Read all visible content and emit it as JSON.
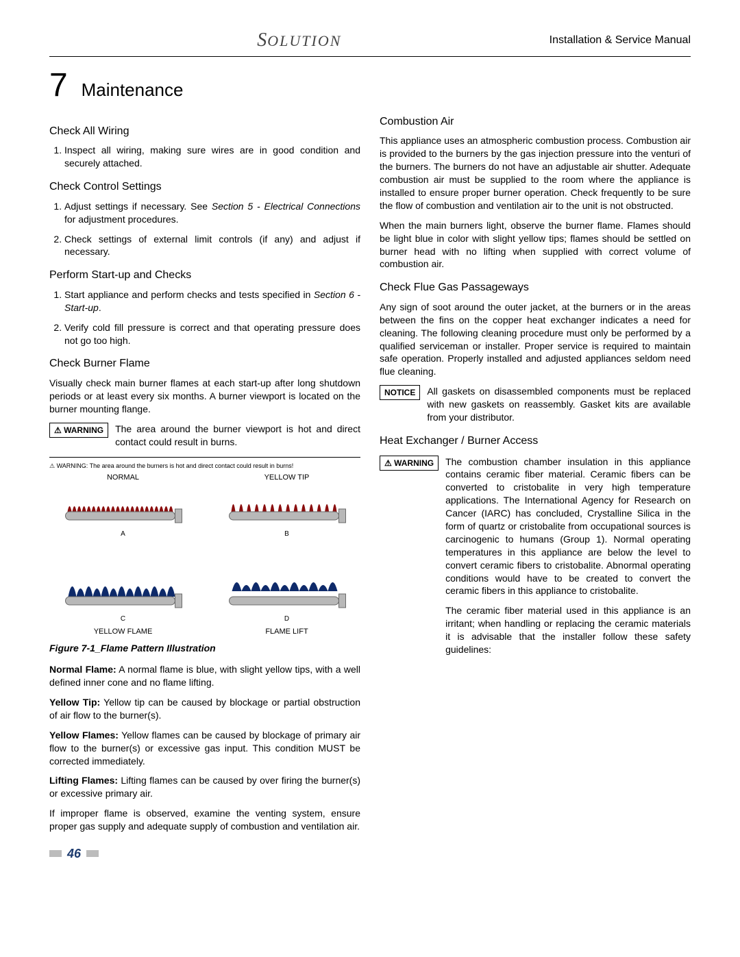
{
  "header": {
    "brand": "Solution",
    "doc_title": "Installation & Service Manual"
  },
  "chapter": {
    "number": "7",
    "title": "Maintenance"
  },
  "left": {
    "sec1_h": "Check All Wiring",
    "sec1_li1": "Inspect all wiring, making sure wires are in good condition and securely attached.",
    "sec2_h": "Check Control Settings",
    "sec2_li1_a": "Adjust settings if necessary.  See ",
    "sec2_li1_ref": "Section 5 - Electrical Connections",
    "sec2_li1_b": " for adjustment procedures.",
    "sec2_li2": "Check settings of external limit controls (if any) and adjust if necessary.",
    "sec3_h": "Perform Start-up and Checks",
    "sec3_li1_a": "Start appliance and perform checks and tests specified in ",
    "sec3_li1_ref": "Section 6 - Start-up",
    "sec3_li1_b": ".",
    "sec3_li2": "Verify cold fill pressure is correct and that operating pressure does not go too high.",
    "sec4_h": "Check Burner Flame",
    "sec4_p1": "Visually check main burner flames at each start-up after long shutdown periods or at least every six months.  A burner viewport is located on the burner mounting flange.",
    "warn1_label": "WARNING",
    "warn1_text": "The area around the burner viewport is hot and direct contact could result in burns.",
    "figure": {
      "fig_warn": "⚠ WARNING:  The area around the burners is hot and direct contact could result in burns!",
      "a_top": "NORMAL",
      "b_top": "YELLOW TIP",
      "a_letter": "A",
      "b_letter": "B",
      "c_letter": "C",
      "d_letter": "D",
      "c_bot": "YELLOW FLAME",
      "d_bot": "FLAME LIFT",
      "caption": "Figure 7-1_Flame Pattern Illustration",
      "colors": {
        "burner_body": "#b8b8b8",
        "burner_edge": "#6a6a6a",
        "flame_normal": "#8a0e0e",
        "flame_yellowtip": "#8a0e0e",
        "flame_yellow": "#0e2a6a",
        "flame_lift": "#0e2a6a"
      }
    },
    "flame_defs": {
      "normal_lead": "Normal Flame:",
      "normal_body": "  A normal flame is blue, with slight yellow tips,  with a well defined inner cone and no flame lifting.",
      "yellowtip_lead": "Yellow Tip:",
      "yellowtip_body": "  Yellow tip can be caused by blockage or partial obstruction of air flow to the burner(s).",
      "yellowflame_lead": "Yellow Flames:",
      "yellowflame_body": "  Yellow flames can be caused by blockage of primary air flow to the burner(s) or excessive gas input.  This condition MUST be corrected immediately.",
      "lifting_lead": "Lifting Flames:",
      "lifting_body": "  Lifting flames can be caused by over firing the burner(s) or excessive primary air.",
      "closing": "If improper flame is observed, examine the venting system, ensure proper gas supply and adequate supply of combustion and ventilation air."
    }
  },
  "right": {
    "sec1_h": "Combustion Air",
    "sec1_p1": "This appliance uses an atmospheric combustion process. Combustion air is provided to the burners by the gas injection pressure into the venturi of the burners.  The burners do not have an adjustable air shutter.  Adequate combustion air must be supplied to the room where the appliance is installed to ensure proper burner operation.  Check frequently to be sure the flow of combustion and ventilation air to the unit is not obstructed.",
    "sec1_p2": "When the main burners light, observe the burner flame.  Flames should be light blue in color with slight yellow tips; flames should be settled on burner head with no lifting when supplied with correct volume of combustion air.",
    "sec2_h": "Check Flue Gas Passageways",
    "sec2_p1": "Any sign of soot around the outer jacket, at the burners or in the areas between the fins on the copper heat exchanger indicates a need for cleaning.  The following cleaning procedure must only be performed by a qualified serviceman or installer.  Proper service is required to maintain safe operation.  Properly installed and adjusted appliances seldom need flue cleaning.",
    "notice_label": "NOTICE",
    "notice_text": "All gaskets on disassembled components must be replaced with new gaskets on reassembly.  Gasket kits are available from your distributor.",
    "sec3_h": "Heat Exchanger / Burner Access",
    "warn2_label": "WARNING",
    "warn2_text_p1": "The combustion chamber insulation in this appliance contains ceramic fiber material. Ceramic fibers can be converted to cristobalite in very high temperature applications.  The International Agency for Research on Cancer (IARC) has concluded,  Crystalline Silica in the form of quartz or cristobalite from occupational sources is carcinogenic to humans (Group 1). Normal operating temperatures in this appliance are below the level to convert ceramic fibers to cristobalite. Abnormal operating conditions would have to be created to convert the ceramic fibers in this appliance to cristobalite.",
    "warn2_text_p2": "The ceramic fiber material used in this appliance is an irritant; when handling or replacing the ceramic materials it is advisable that the installer follow these safety guidelines:"
  },
  "page_number": "46"
}
